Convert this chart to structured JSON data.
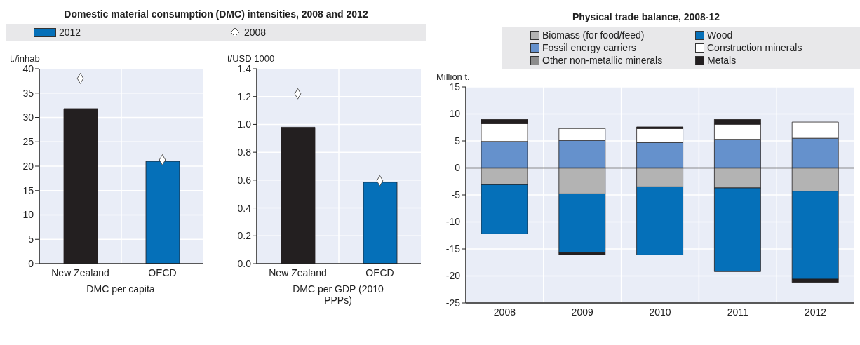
{
  "chart_data": [
    {
      "type": "bar",
      "title": "Domestic material consumption (DMC) intensities, 2008 and 2012",
      "ylabel": "t./inhab",
      "xlabel": "DMC per capita",
      "categories": [
        "New Zealand",
        "OECD"
      ],
      "series": [
        {
          "name": "2012",
          "color": "#0570b9",
          "colors": [
            "#231f20",
            "#0570b9"
          ],
          "values": [
            31.8,
            21.0
          ]
        },
        {
          "name": "2008",
          "type": "scatter",
          "color": "#ffffff",
          "values": [
            38.0,
            21.3
          ]
        }
      ],
      "marker": "diamond",
      "ylim": [
        0,
        40
      ],
      "yticks": [
        0,
        5,
        10,
        15,
        20,
        25,
        30,
        35,
        40
      ],
      "grid": true,
      "legend": "top"
    },
    {
      "type": "bar",
      "ylabel": "t/USD 1000",
      "xlabel": "DMC per GDP (2010 PPPs)",
      "categories": [
        "New Zealand",
        "OECD"
      ],
      "series": [
        {
          "color": "#0570b9",
          "colors": [
            "#231f20",
            "#0570b9"
          ],
          "values": [
            0.98,
            0.585
          ]
        },
        {
          "type": "scatter",
          "color": "#ffffff",
          "values": [
            1.22,
            0.595
          ]
        }
      ],
      "marker": "diamond",
      "ylim": [
        0,
        1.4
      ],
      "yticks": [
        {
          "value": 0,
          "label": "0.0"
        },
        0.2,
        0.4,
        0.6,
        0.8,
        {
          "value": 1,
          "label": "1.0"
        },
        1.2,
        1.4
      ],
      "grid": true
    },
    {
      "type": "bar",
      "title": "Physical trade balance, 2008-12",
      "ylabel": "Million t.",
      "categories": [
        "2008",
        "2009",
        "2010",
        "2011",
        "2012"
      ],
      "stacked": true,
      "series": [
        {
          "name": "Biomass (for food/feed)",
          "color": "#b3b3b3",
          "values": [
            -3.1,
            -4.8,
            -3.5,
            -3.7,
            -4.3
          ]
        },
        {
          "name": "Wood",
          "color": "#0570b9",
          "values": [
            -9.1,
            -10.9,
            -12.6,
            -15.5,
            -16.3
          ]
        },
        {
          "name": "Fossil energy carriers",
          "color": "#6591cc",
          "values": [
            4.9,
            5.1,
            4.7,
            5.3,
            5.5
          ]
        },
        {
          "name": "Construction minerals",
          "color": "#ffffff",
          "values": [
            3.3,
            2.2,
            2.6,
            2.8,
            3.0
          ]
        },
        {
          "name": "Other non-metallic minerals",
          "color": "#8c8c8c",
          "values": [
            0,
            0,
            0,
            0,
            0
          ]
        },
        {
          "name": "Metals",
          "color": "#231f20",
          "values": [
            0.8,
            -0.4,
            0.3,
            0.9,
            -0.6
          ]
        }
      ],
      "ylim": [
        -25,
        15
      ],
      "yticks": [
        -25,
        -20,
        -15,
        -10,
        -5,
        0,
        5,
        10,
        15
      ],
      "grid": true,
      "legend": "top"
    }
  ]
}
